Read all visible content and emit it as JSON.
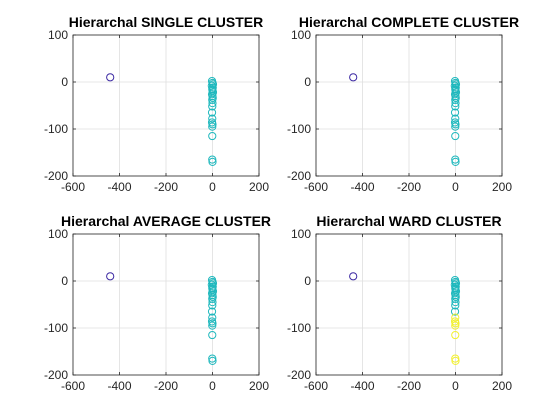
{
  "colors": {
    "blue": "#3d2aa3",
    "teal": "#1fb8bd",
    "yellow": "#f2f030",
    "grid": "#dfdfdf",
    "axis": "#262626"
  },
  "chart_data": [
    {
      "type": "scatter",
      "title": "Hierarchal SINGLE CLUSTER",
      "xlim": [
        -600,
        200
      ],
      "ylim": [
        -200,
        100
      ],
      "xticks": [
        -600,
        -400,
        -200,
        0,
        200
      ],
      "yticks": [
        -200,
        -100,
        0,
        100
      ],
      "xtick_labels": [
        "-600",
        "-400",
        "-200",
        "0",
        "200"
      ],
      "ytick_labels": [
        "-200",
        "-100",
        "0",
        "100"
      ],
      "grid": true,
      "series": [
        {
          "color": "#3d2aa3",
          "points": [
            [
              -440,
              10
            ]
          ]
        },
        {
          "color": "#1fb8bd",
          "points": [
            [
              -2,
              2
            ],
            [
              0,
              -2
            ],
            [
              2,
              -5
            ],
            [
              -3,
              -8
            ],
            [
              1,
              -12
            ],
            [
              -1,
              -15
            ],
            [
              0,
              -18
            ],
            [
              2,
              -22
            ],
            [
              -2,
              -26
            ],
            [
              0,
              -30
            ],
            [
              1,
              -34
            ],
            [
              -1,
              -38
            ],
            [
              0,
              -45
            ],
            [
              -1,
              -52
            ],
            [
              -2,
              -65
            ],
            [
              -1,
              -78
            ],
            [
              -2,
              -86
            ],
            [
              0,
              -90
            ],
            [
              -1,
              -95
            ],
            [
              -1,
              -115
            ],
            [
              -1,
              -165
            ],
            [
              0,
              -170
            ]
          ]
        }
      ]
    },
    {
      "type": "scatter",
      "title": "Hierarchal COMPLETE CLUSTER",
      "xlim": [
        -600,
        200
      ],
      "ylim": [
        -200,
        100
      ],
      "xticks": [
        -600,
        -400,
        -200,
        0,
        200
      ],
      "yticks": [
        -200,
        -100,
        0,
        100
      ],
      "xtick_labels": [
        "-600",
        "-400",
        "-200",
        "0",
        "200"
      ],
      "ytick_labels": [
        "-200",
        "-100",
        "0",
        "100"
      ],
      "grid": true,
      "series": [
        {
          "color": "#3d2aa3",
          "points": [
            [
              -440,
              10
            ]
          ]
        },
        {
          "color": "#1fb8bd",
          "points": [
            [
              -2,
              2
            ],
            [
              0,
              -2
            ],
            [
              2,
              -5
            ],
            [
              -3,
              -8
            ],
            [
              1,
              -12
            ],
            [
              -1,
              -15
            ],
            [
              0,
              -18
            ],
            [
              2,
              -22
            ],
            [
              -2,
              -26
            ],
            [
              0,
              -30
            ],
            [
              1,
              -34
            ],
            [
              -1,
              -38
            ],
            [
              0,
              -45
            ],
            [
              -1,
              -52
            ],
            [
              -2,
              -65
            ],
            [
              -1,
              -78
            ],
            [
              -2,
              -86
            ],
            [
              0,
              -90
            ],
            [
              -1,
              -95
            ],
            [
              -1,
              -115
            ],
            [
              -1,
              -165
            ],
            [
              0,
              -170
            ]
          ]
        }
      ]
    },
    {
      "type": "scatter",
      "title": "Hierarchal AVERAGE CLUSTER",
      "xlim": [
        -600,
        200
      ],
      "ylim": [
        -200,
        100
      ],
      "xticks": [
        -600,
        -400,
        -200,
        0,
        200
      ],
      "yticks": [
        -200,
        -100,
        0,
        100
      ],
      "xtick_labels": [
        "-600",
        "-400",
        "-200",
        "0",
        "200"
      ],
      "ytick_labels": [
        "-200",
        "-100",
        "0",
        "100"
      ],
      "grid": true,
      "series": [
        {
          "color": "#3d2aa3",
          "points": [
            [
              -440,
              10
            ]
          ]
        },
        {
          "color": "#1fb8bd",
          "points": [
            [
              -2,
              2
            ],
            [
              0,
              -2
            ],
            [
              2,
              -5
            ],
            [
              -3,
              -8
            ],
            [
              1,
              -12
            ],
            [
              -1,
              -15
            ],
            [
              0,
              -18
            ],
            [
              2,
              -22
            ],
            [
              -2,
              -26
            ],
            [
              0,
              -30
            ],
            [
              1,
              -34
            ],
            [
              -1,
              -38
            ],
            [
              0,
              -45
            ],
            [
              -1,
              -52
            ],
            [
              -2,
              -65
            ],
            [
              -1,
              -78
            ],
            [
              -2,
              -86
            ],
            [
              0,
              -90
            ],
            [
              -1,
              -95
            ],
            [
              -1,
              -115
            ],
            [
              -1,
              -165
            ],
            [
              0,
              -170
            ]
          ]
        }
      ]
    },
    {
      "type": "scatter",
      "title": "Hierarchal WARD CLUSTER",
      "xlim": [
        -600,
        200
      ],
      "ylim": [
        -200,
        100
      ],
      "xticks": [
        -600,
        -400,
        -200,
        0,
        200
      ],
      "yticks": [
        -200,
        -100,
        0,
        100
      ],
      "xtick_labels": [
        "-600",
        "-400",
        "-200",
        "0",
        "200"
      ],
      "ytick_labels": [
        "-200",
        "-100",
        "0",
        "100"
      ],
      "grid": true,
      "series": [
        {
          "color": "#3d2aa3",
          "points": [
            [
              -440,
              10
            ]
          ]
        },
        {
          "color": "#1fb8bd",
          "points": [
            [
              -2,
              2
            ],
            [
              0,
              -2
            ],
            [
              2,
              -5
            ],
            [
              -3,
              -8
            ],
            [
              1,
              -12
            ],
            [
              -1,
              -15
            ],
            [
              0,
              -18
            ],
            [
              2,
              -22
            ],
            [
              -2,
              -26
            ],
            [
              0,
              -30
            ],
            [
              1,
              -34
            ],
            [
              -1,
              -38
            ],
            [
              0,
              -45
            ],
            [
              -1,
              -52
            ],
            [
              -2,
              -65
            ]
          ]
        },
        {
          "color": "#f2f030",
          "points": [
            [
              -1,
              -78
            ],
            [
              -2,
              -86
            ],
            [
              0,
              -90
            ],
            [
              -1,
              -95
            ],
            [
              -1,
              -115
            ],
            [
              -1,
              -165
            ],
            [
              0,
              -170
            ]
          ]
        }
      ]
    }
  ]
}
